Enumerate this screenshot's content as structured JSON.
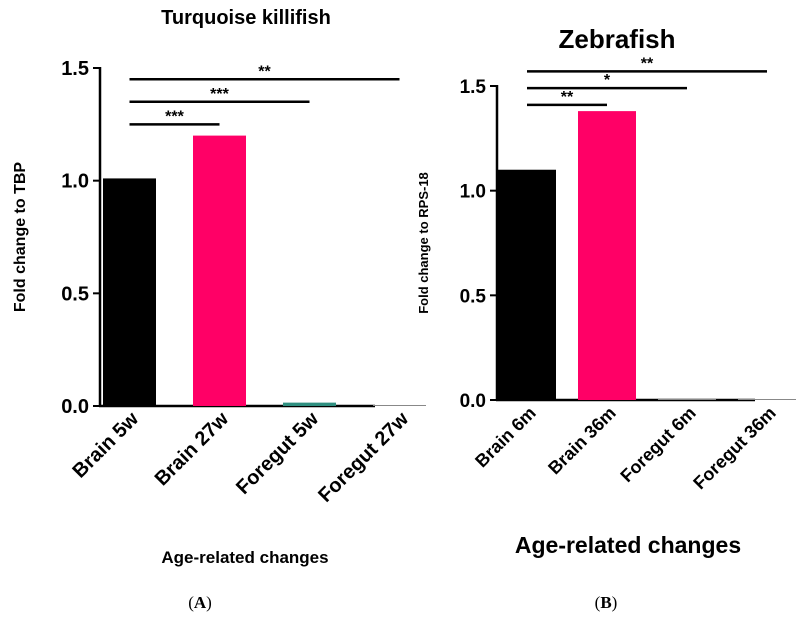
{
  "chart_data": [
    {
      "type": "bar",
      "panel_label": "A",
      "title": "Turquoise killifish",
      "xlabel": "Age-related changes",
      "ylabel": "Fold change to TBP",
      "ylim": [
        0,
        1.5
      ],
      "yticks": [
        "0.0",
        "0.5",
        "1.0",
        "1.5"
      ],
      "categories": [
        "Brain 5w",
        "Brain 27w",
        "Foregut 5w",
        "Foregut 27w"
      ],
      "values": [
        1.01,
        1.2,
        0.015,
        0.003
      ],
      "colors": [
        "#000000",
        "#ff0066",
        "#2f8f80",
        "#888888"
      ],
      "significance": [
        {
          "from": 0,
          "to": 1,
          "label": "***",
          "y": 1.25
        },
        {
          "from": 0,
          "to": 2,
          "label": "***",
          "y": 1.35
        },
        {
          "from": 0,
          "to": 3,
          "label": "**",
          "y": 1.45
        }
      ],
      "grid": false,
      "legend": "none"
    },
    {
      "type": "bar",
      "panel_label": "B",
      "title": "Zebrafish",
      "xlabel": "Age-related changes",
      "ylabel": "Fold change to RPS-18",
      "ylim": [
        0,
        1.5
      ],
      "yticks": [
        "0.0",
        "0.5",
        "1.0",
        "1.5"
      ],
      "categories": [
        "Brain 6m",
        "Brain 36m",
        "Foregut 6m",
        "Foregut 36m"
      ],
      "values": [
        1.1,
        1.38,
        0.002,
        0.002
      ],
      "colors": [
        "#000000",
        "#ff0066",
        "#888888",
        "#888888"
      ],
      "significance": [
        {
          "from": 0,
          "to": 1,
          "label": "**",
          "y": 1.41
        },
        {
          "from": 0,
          "to": 2,
          "label": "*",
          "y": 1.49
        },
        {
          "from": 0,
          "to": 3,
          "label": "**",
          "y": 1.57
        }
      ],
      "grid": false,
      "legend": "none"
    }
  ]
}
